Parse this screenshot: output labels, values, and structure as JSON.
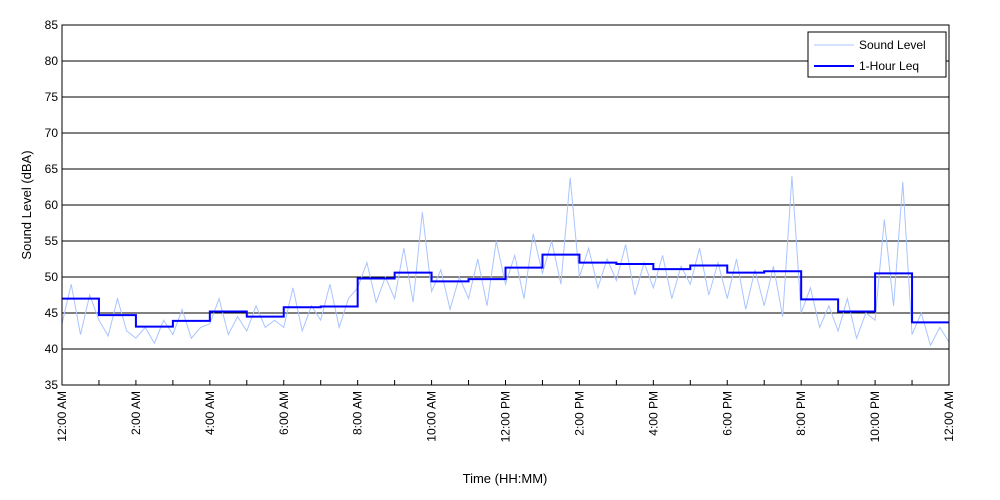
{
  "chart_data": {
    "type": "line",
    "title": "",
    "xlabel": "Time (HH:MM)",
    "ylabel": "Sound Level (dBA)",
    "xlim": [
      0,
      24
    ],
    "ylim": [
      35,
      85
    ],
    "yticks": [
      35,
      40,
      45,
      50,
      55,
      60,
      65,
      70,
      75,
      80,
      85
    ],
    "xticks_hours": [
      0,
      1,
      2,
      3,
      4,
      5,
      6,
      7,
      8,
      9,
      10,
      11,
      12,
      13,
      14,
      15,
      16,
      17,
      18,
      19,
      20,
      21,
      22,
      23,
      24
    ],
    "xtick_labels": [
      {
        "hour": 0,
        "label": "12:00 AM"
      },
      {
        "hour": 2,
        "label": "2:00 AM"
      },
      {
        "hour": 4,
        "label": "4:00 AM"
      },
      {
        "hour": 6,
        "label": "6:00 AM"
      },
      {
        "hour": 8,
        "label": "8:00 AM"
      },
      {
        "hour": 10,
        "label": "10:00 AM"
      },
      {
        "hour": 12,
        "label": "12:00 PM"
      },
      {
        "hour": 14,
        "label": "2:00 PM"
      },
      {
        "hour": 16,
        "label": "4:00 PM"
      },
      {
        "hour": 18,
        "label": "6:00 PM"
      },
      {
        "hour": 20,
        "label": "8:00 PM"
      },
      {
        "hour": 22,
        "label": "10:00 PM"
      },
      {
        "hour": 24,
        "label": "12:00 AM"
      }
    ],
    "grid": "horizontal",
    "legend": "top-right",
    "series": [
      {
        "name": "Sound Level",
        "color": "#aac4ff",
        "sample_interval_minutes": 15,
        "values": [
          43.5,
          49,
          42,
          47.5,
          44,
          41.8,
          47,
          42.5,
          41.5,
          43,
          40.8,
          44,
          42,
          45.5,
          41.5,
          43,
          43.5,
          47,
          42,
          44.5,
          42.5,
          46,
          43,
          44,
          43,
          48.5,
          42.5,
          46,
          44,
          49,
          43,
          47,
          48.5,
          52,
          46.5,
          50,
          47,
          54,
          46.5,
          59,
          48,
          51,
          45.5,
          50,
          47,
          52.5,
          46,
          55,
          49,
          53,
          47,
          56,
          50.5,
          55,
          49,
          63.8,
          50,
          54,
          48.5,
          52.5,
          49.5,
          54.5,
          47.5,
          52,
          48.5,
          53,
          47,
          51.5,
          49,
          54,
          47.5,
          52,
          47,
          52.5,
          45.5,
          51,
          46,
          51.5,
          44.5,
          64,
          45,
          48.5,
          43,
          46,
          42.5,
          47,
          41.5,
          45,
          44,
          58,
          46,
          63.2,
          42,
          45,
          40.5,
          43,
          41
        ]
      },
      {
        "name": "1-Hour Leq",
        "color": "#0000ff",
        "step_hours": 1,
        "values": [
          47.0,
          44.7,
          43.1,
          43.9,
          45.2,
          44.5,
          45.8,
          45.9,
          49.8,
          50.6,
          49.4,
          49.7,
          51.3,
          53.1,
          52.0,
          51.8,
          51.1,
          51.6,
          50.6,
          50.8,
          46.9,
          45.2,
          50.5,
          43.7
        ]
      }
    ]
  }
}
